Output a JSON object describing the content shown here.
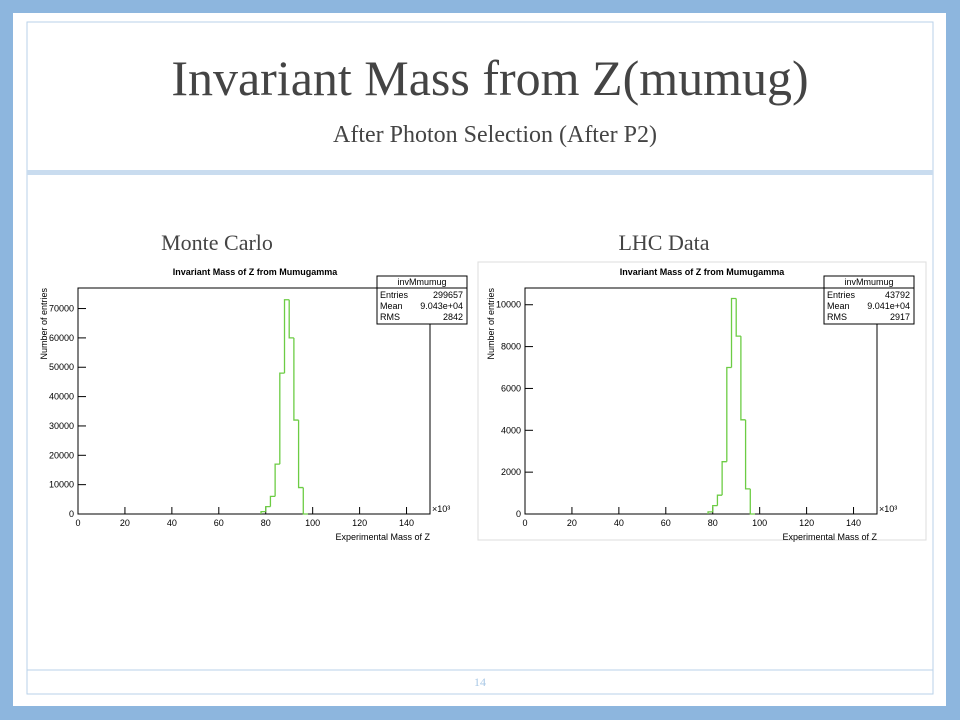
{
  "slide": {
    "title": "Invariant Mass from Z(mumug)",
    "subtitle": "After Photon Selection (After P2)",
    "page_number": "14"
  },
  "chart_data": [
    {
      "type": "histogram",
      "caption": "Monte Carlo",
      "title": "Invariant Mass of Z from Mumugamma",
      "x_label": "Experimental Mass of Z",
      "y_label": "Number of entries",
      "x_multiplier": "×10³",
      "bins": [
        78,
        80,
        82,
        84,
        86,
        88,
        90,
        92,
        94,
        96,
        98
      ],
      "values": [
        800,
        2500,
        6000,
        17000,
        48000,
        73000,
        60000,
        32000,
        9000,
        0
      ],
      "color": "#6ccc44",
      "xlim": [
        0,
        150
      ],
      "xticks": [
        0,
        20,
        40,
        60,
        80,
        100,
        120,
        140
      ],
      "ylim": [
        0,
        77000
      ],
      "yticks": [
        0,
        10000,
        20000,
        30000,
        40000,
        50000,
        60000,
        70000
      ],
      "stats": {
        "title": "invMmumug",
        "rows": [
          [
            "Entries",
            299657
          ],
          [
            "Mean",
            "9.043e+04"
          ],
          [
            "RMS",
            2842
          ]
        ]
      }
    },
    {
      "type": "histogram",
      "caption": "LHC Data",
      "title": "Invariant Mass of Z from Mumugamma",
      "x_label": "Experimental Mass of Z",
      "y_label": "Number of entries",
      "x_multiplier": "×10³",
      "bins": [
        78,
        80,
        82,
        84,
        86,
        88,
        90,
        92,
        94,
        96,
        98
      ],
      "values": [
        100,
        400,
        900,
        2500,
        7000,
        10300,
        8500,
        4500,
        1200,
        0
      ],
      "color": "#6ccc44",
      "xlim": [
        0,
        150
      ],
      "xticks": [
        0,
        20,
        40,
        60,
        80,
        100,
        120,
        140
      ],
      "ylim": [
        0,
        10800
      ],
      "yticks": [
        0,
        2000,
        4000,
        6000,
        8000,
        10000
      ],
      "stats": {
        "title": "invMmumug",
        "rows": [
          [
            "Entries",
            43792
          ],
          [
            "Mean",
            "9.041e+04"
          ],
          [
            "RMS",
            2917
          ]
        ]
      }
    }
  ]
}
